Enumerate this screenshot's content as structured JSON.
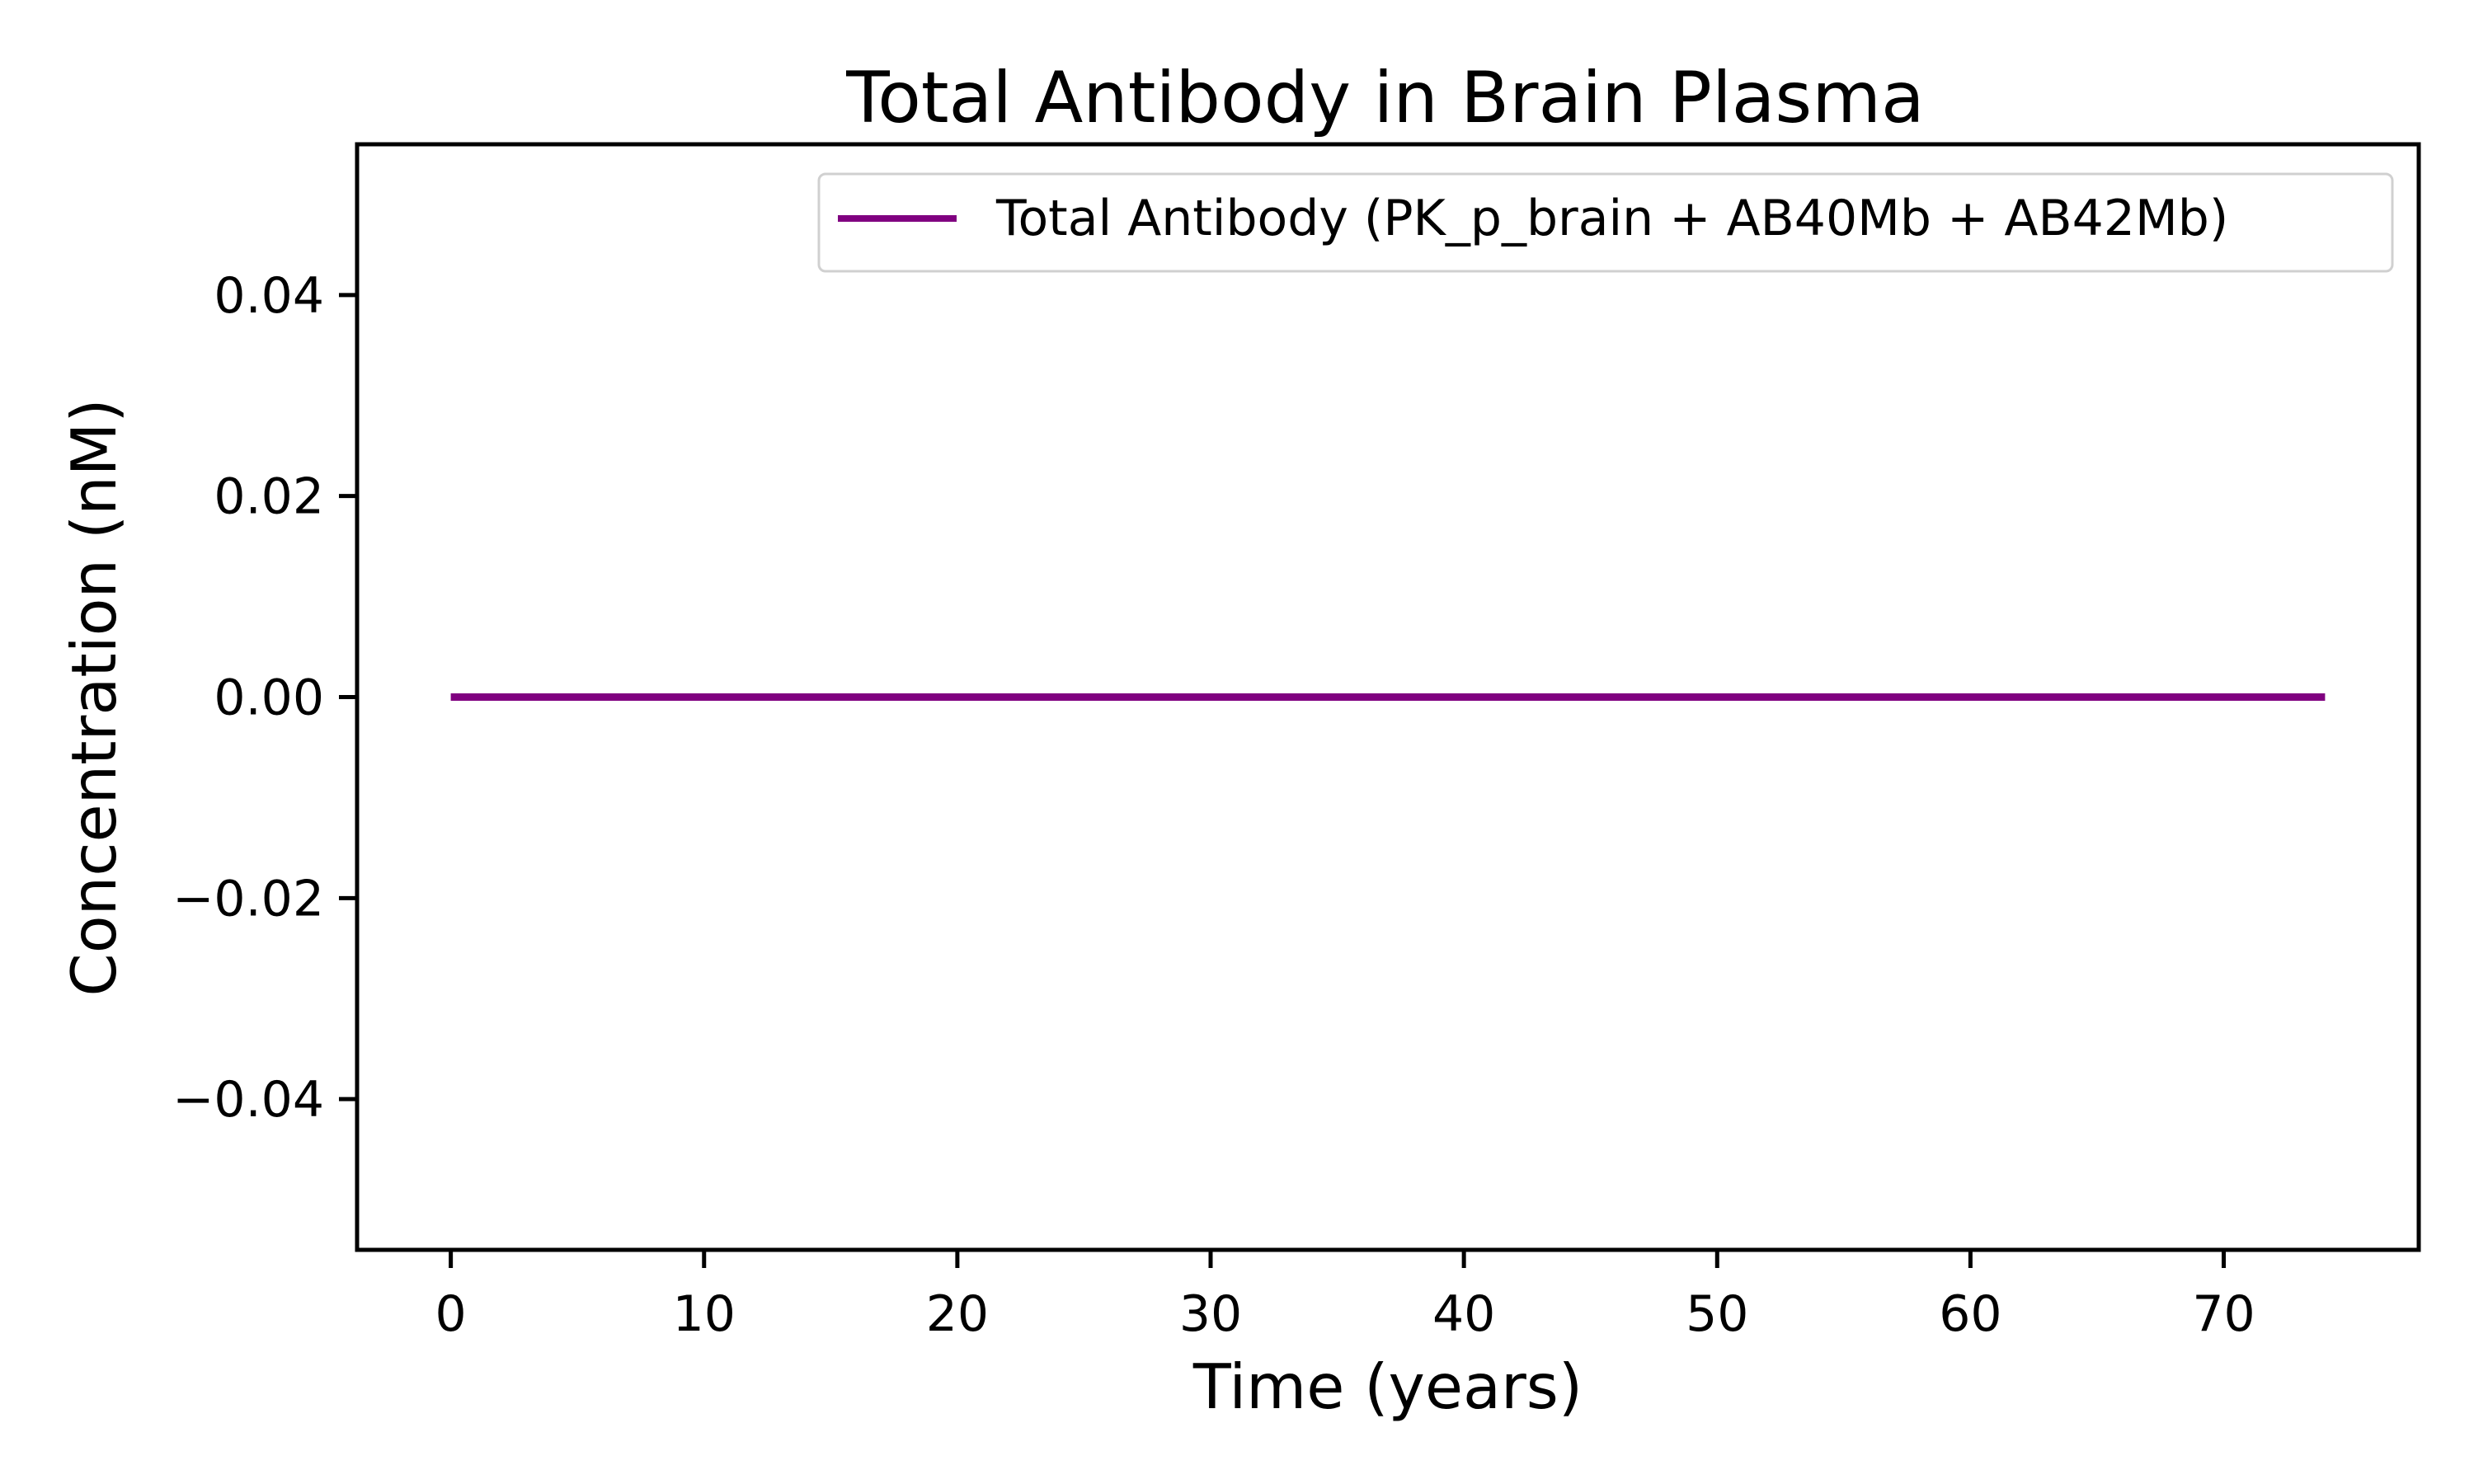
{
  "chart_data": {
    "type": "line",
    "title": "Total Antibody in Brain Plasma",
    "xlabel": "Time (years)",
    "ylabel": "Concentration (nM)",
    "xlim": [
      -3.7,
      77.7
    ],
    "ylim": [
      -0.055,
      0.055
    ],
    "xticks": [
      0,
      10,
      20,
      30,
      40,
      50,
      60,
      70
    ],
    "xtick_labels": [
      "0",
      "10",
      "20",
      "30",
      "40",
      "50",
      "60",
      "70"
    ],
    "yticks": [
      -0.04,
      -0.02,
      0.0,
      0.02,
      0.04
    ],
    "ytick_labels": [
      "−0.04",
      "−0.02",
      "0.00",
      "0.02",
      "0.04"
    ],
    "grid": false,
    "legend_position": "top-right",
    "series": [
      {
        "name": "Total Antibody (PK_p_brain + AB40Mb + AB42Mb)",
        "color": "#800080",
        "x": [
          0,
          10,
          20,
          30,
          40,
          50,
          60,
          70,
          74
        ],
        "y": [
          0,
          0,
          0,
          0,
          0,
          0,
          0,
          0,
          0
        ]
      }
    ]
  }
}
